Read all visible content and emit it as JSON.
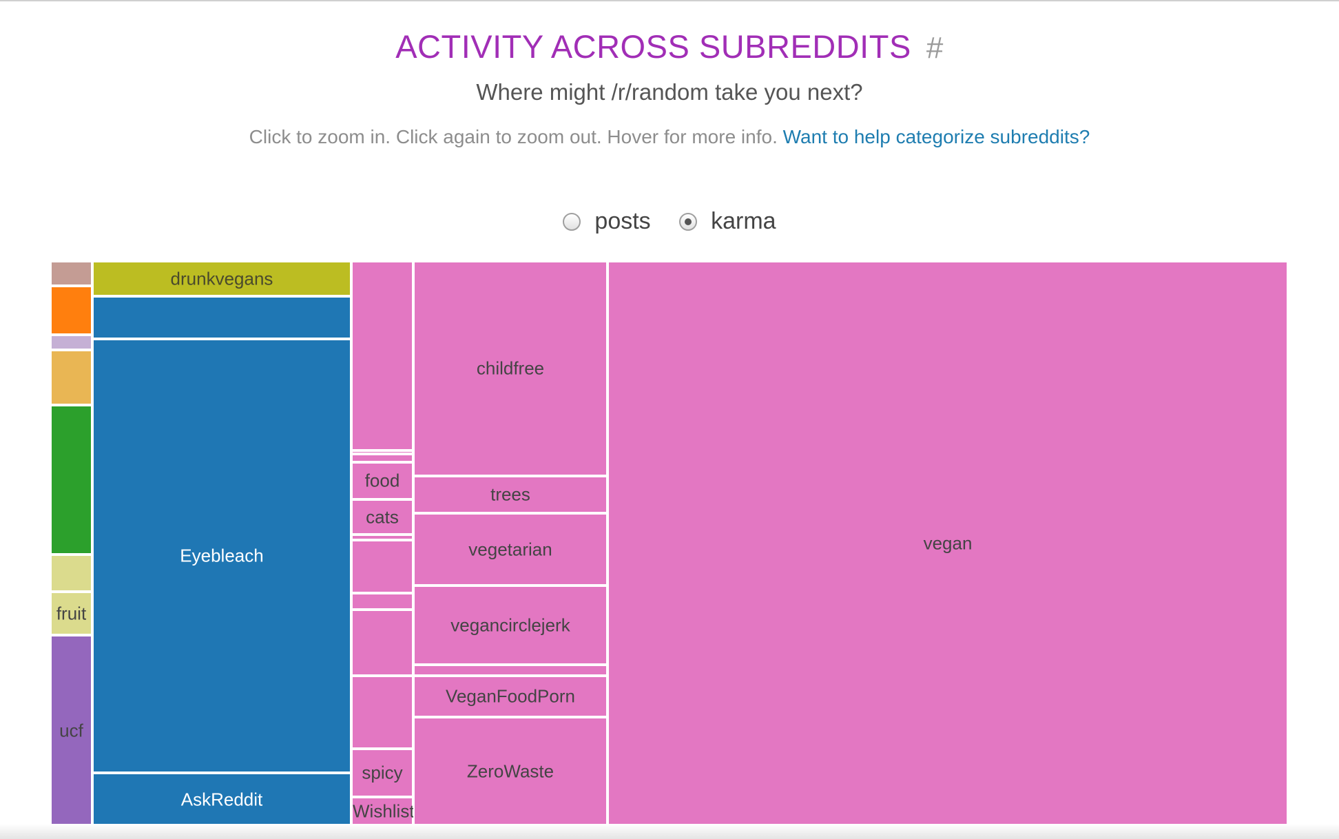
{
  "header": {
    "title": "ACTIVITY ACROSS SUBREDDITS",
    "hash": "#",
    "subtitle": "Where might /r/random take you next?",
    "help_text": "Click to zoom in. Click again to zoom out. Hover for more info.",
    "help_link": "Want to help categorize subreddits?"
  },
  "metric_toggle": {
    "options": [
      {
        "label": "posts",
        "selected": false
      },
      {
        "label": "karma",
        "selected": true
      }
    ]
  },
  "colors": {
    "pink": "#e377c2",
    "blue": "#1f77b4",
    "olive": "#bcbd22",
    "green": "#2ca02c",
    "orange": "#ff7f0e",
    "gold": "#e9b654",
    "lavender": "#c5b0d5",
    "brown": "#c49c94",
    "khaki": "#dbdb8d",
    "purple": "#9467bd"
  },
  "chart_data": {
    "type": "treemap",
    "metric": "karma",
    "title": "ACTIVITY ACROSS SUBREDDITS",
    "columns": [
      {
        "share": 0.034,
        "cells": [
          {
            "label": "",
            "color": "brown",
            "share": 0.044
          },
          {
            "label": "",
            "color": "orange",
            "share": 0.086
          },
          {
            "label": "",
            "color": "lavender",
            "share": 0.027
          },
          {
            "label": "",
            "color": "gold",
            "share": 0.097
          },
          {
            "label": "",
            "color": "green",
            "share": 0.265
          },
          {
            "label": "",
            "color": "khaki",
            "share": 0.066
          },
          {
            "label": "fruit",
            "color": "khaki",
            "share": 0.077
          },
          {
            "label": "ucf",
            "color": "purple",
            "share": 0.338
          }
        ]
      },
      {
        "share": 0.209,
        "cells": [
          {
            "label": "drunkvegans",
            "color": "olive",
            "text_color": "#4a4a2c",
            "share": 0.062
          },
          {
            "label": "",
            "color": "blue",
            "share": 0.076
          },
          {
            "label": "Eyebleach",
            "color": "blue",
            "text_color": "#ffffff",
            "share": 0.768
          },
          {
            "label": "AskReddit",
            "color": "blue",
            "text_color": "#ffffff",
            "share": 0.094
          }
        ]
      },
      {
        "share": 0.05,
        "cells": [
          {
            "label": "",
            "color": "pink",
            "share": 0.337
          },
          {
            "label": "",
            "color": "pink",
            "share": 0.006
          },
          {
            "label": "",
            "color": "pink",
            "share": 0.015
          },
          {
            "label": "food",
            "color": "pink",
            "text_color": "#444444",
            "share": 0.066
          },
          {
            "label": "cats",
            "color": "pink",
            "text_color": "#444444",
            "share": 0.062
          },
          {
            "label": "",
            "color": "pink",
            "share": 0.01
          },
          {
            "label": "",
            "color": "pink",
            "share": 0.094
          },
          {
            "label": "",
            "color": "pink",
            "share": 0.03
          },
          {
            "label": "",
            "color": "pink",
            "share": 0.118
          },
          {
            "label": "",
            "color": "pink",
            "share": 0.13
          },
          {
            "label": "spicy",
            "color": "pink",
            "text_color": "#444444",
            "share": 0.086
          },
          {
            "label": "Wishlist",
            "color": "pink",
            "text_color": "#444444",
            "share": 0.051
          }
        ]
      },
      {
        "share": 0.157,
        "cells": [
          {
            "label": "childfree",
            "color": "pink",
            "text_color": "#444444",
            "share": 0.381
          },
          {
            "label": "trees",
            "color": "pink",
            "text_color": "#444444",
            "share": 0.066
          },
          {
            "label": "vegetarian",
            "color": "pink",
            "text_color": "#444444",
            "share": 0.128
          },
          {
            "label": "vegancirclejerk",
            "color": "pink",
            "text_color": "#444444",
            "share": 0.14
          },
          {
            "label": "",
            "color": "pink",
            "share": 0.019
          },
          {
            "label": "VeganFoodPorn",
            "color": "pink",
            "text_color": "#444444",
            "share": 0.073
          },
          {
            "label": "ZeroWaste",
            "color": "pink",
            "text_color": "#444444",
            "share": 0.193
          }
        ]
      },
      {
        "share": 0.55,
        "cells": [
          {
            "label": "vegan",
            "color": "pink",
            "text_color": "#444444",
            "share": 1.0
          }
        ]
      }
    ]
  }
}
